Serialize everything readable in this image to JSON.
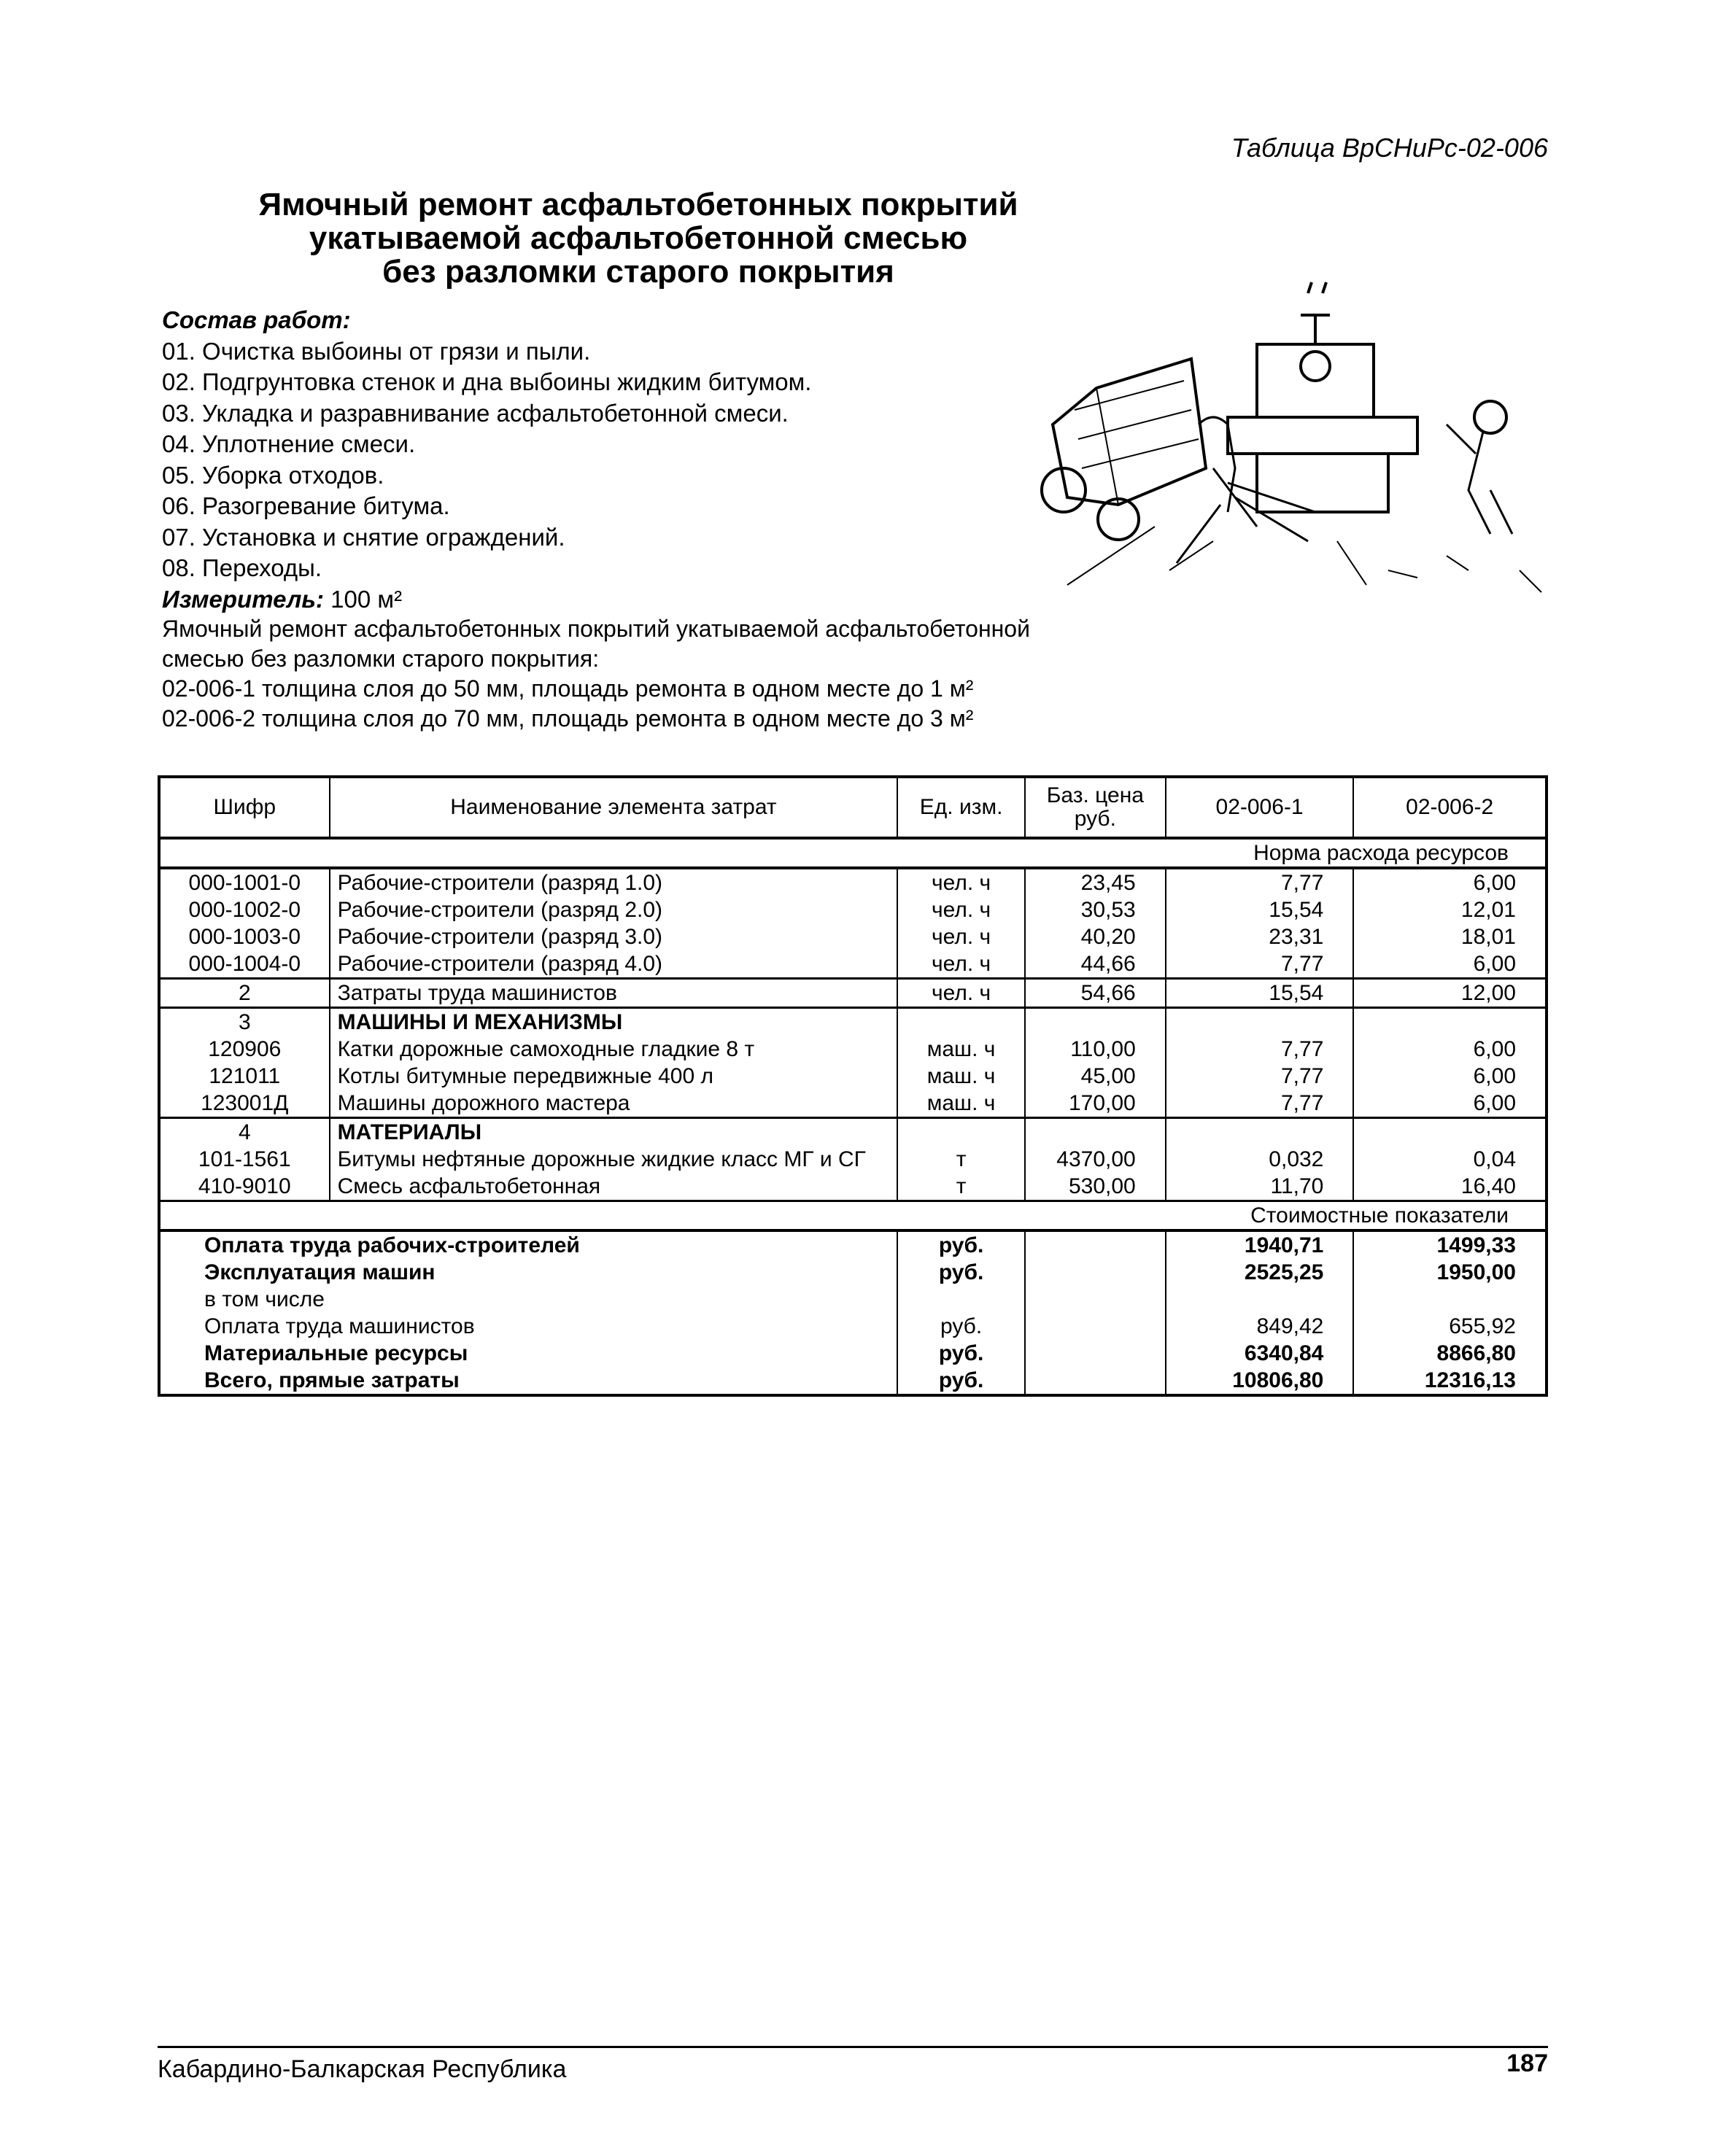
{
  "table_label": "Таблица ВрСНиРс-02-006",
  "title": [
    "Ямочный ремонт асфальтобетонных покрытий",
    "укатываемой асфальтобетонной смесью",
    "без разломки старого покрытия"
  ],
  "composition": {
    "heading": "Состав работ:",
    "items": [
      "01. Очистка выбоины от грязи и пыли.",
      "02. Подгрунтовка стенок и дна выбоины жидким битумом.",
      "03. Укладка и разравнивание асфальтобетонной смеси.",
      "04. Уплотнение смеси.",
      "05. Уборка отходов.",
      "06. Разогревание битума.",
      "07. Установка и снятие ограждений.",
      "08.  Переходы."
    ]
  },
  "measure": {
    "label": "Измеритель:",
    "value": "100 м²"
  },
  "description": [
    "Ямочный ремонт асфальтобетонных покрытий укатываемой асфальтобетонной",
    "смесью без разломки старого покрытия:",
    "02-006-1  толщина слоя до 50 мм, площадь ремонта в одном месте до 1 м²",
    "02-006-2  толщина слоя до 70 мм, площадь ремонта в одном месте до 3 м²"
  ],
  "table": {
    "headers": [
      "Шифр",
      "Наименование элемента затрат",
      "Ед. изм.",
      "Баз. цена руб.",
      "02-006-1",
      "02-006-2"
    ],
    "norm_label": "Норма расхода ресурсов",
    "workers": [
      [
        "000-1001-0",
        "Рабочие-строители (разряд 1.0)",
        "чел. ч",
        "23,45",
        "7,77",
        "6,00"
      ],
      [
        "000-1002-0",
        "Рабочие-строители (разряд 2.0)",
        "чел. ч",
        "30,53",
        "15,54",
        "12,01"
      ],
      [
        "000-1003-0",
        "Рабочие-строители (разряд 3.0)",
        "чел. ч",
        "40,20",
        "23,31",
        "18,01"
      ],
      [
        "000-1004-0",
        "Рабочие-строители (разряд 4.0)",
        "чел. ч",
        "44,66",
        "7,77",
        "6,00"
      ]
    ],
    "operators": [
      "2",
      "Затраты труда машинистов",
      "чел. ч",
      "54,66",
      "15,54",
      "12,00"
    ],
    "machines": {
      "code": "3",
      "title": "МАШИНЫ И МЕХАНИЗМЫ",
      "rows": [
        [
          "120906",
          "Катки дорожные самоходные гладкие 8 т",
          "маш. ч",
          "110,00",
          "7,77",
          "6,00"
        ],
        [
          "121011",
          "Котлы битумные передвижные 400 л",
          "маш. ч",
          "45,00",
          "7,77",
          "6,00"
        ],
        [
          "123001Д",
          "Машины дорожного мастера",
          "маш. ч",
          "170,00",
          "7,77",
          "6,00"
        ]
      ]
    },
    "materials": {
      "code": "4",
      "title": "МАТЕРИАЛЫ",
      "rows": [
        [
          "101-1561",
          "Битумы нефтяные дорожные жидкие класс МГ и СГ",
          "т",
          "4370,00",
          "0,032",
          "0,04"
        ],
        [
          "410-9010",
          "Смесь асфальтобетонная",
          "т",
          "530,00",
          "11,70",
          "16,40"
        ]
      ]
    },
    "cost_label": "Стоимостные показатели",
    "costs": [
      [
        "Оплата труда рабочих-строителей",
        "руб.",
        "1940,71",
        "1499,33"
      ],
      [
        "Эксплуатация машин",
        "руб.",
        "2525,25",
        "1950,00"
      ],
      [
        "в том числе",
        "",
        "",
        ""
      ],
      [
        "Оплата труда машинистов",
        "руб.",
        "849,42",
        "655,92"
      ],
      [
        "Материальные ресурсы",
        "руб.",
        "6340,84",
        "8866,80"
      ],
      [
        "Всего, прямые затраты",
        "руб.",
        "10806,80",
        "12316,13"
      ]
    ]
  },
  "footer": {
    "region": "Кабардино-Балкарская Республика",
    "page": "187"
  }
}
